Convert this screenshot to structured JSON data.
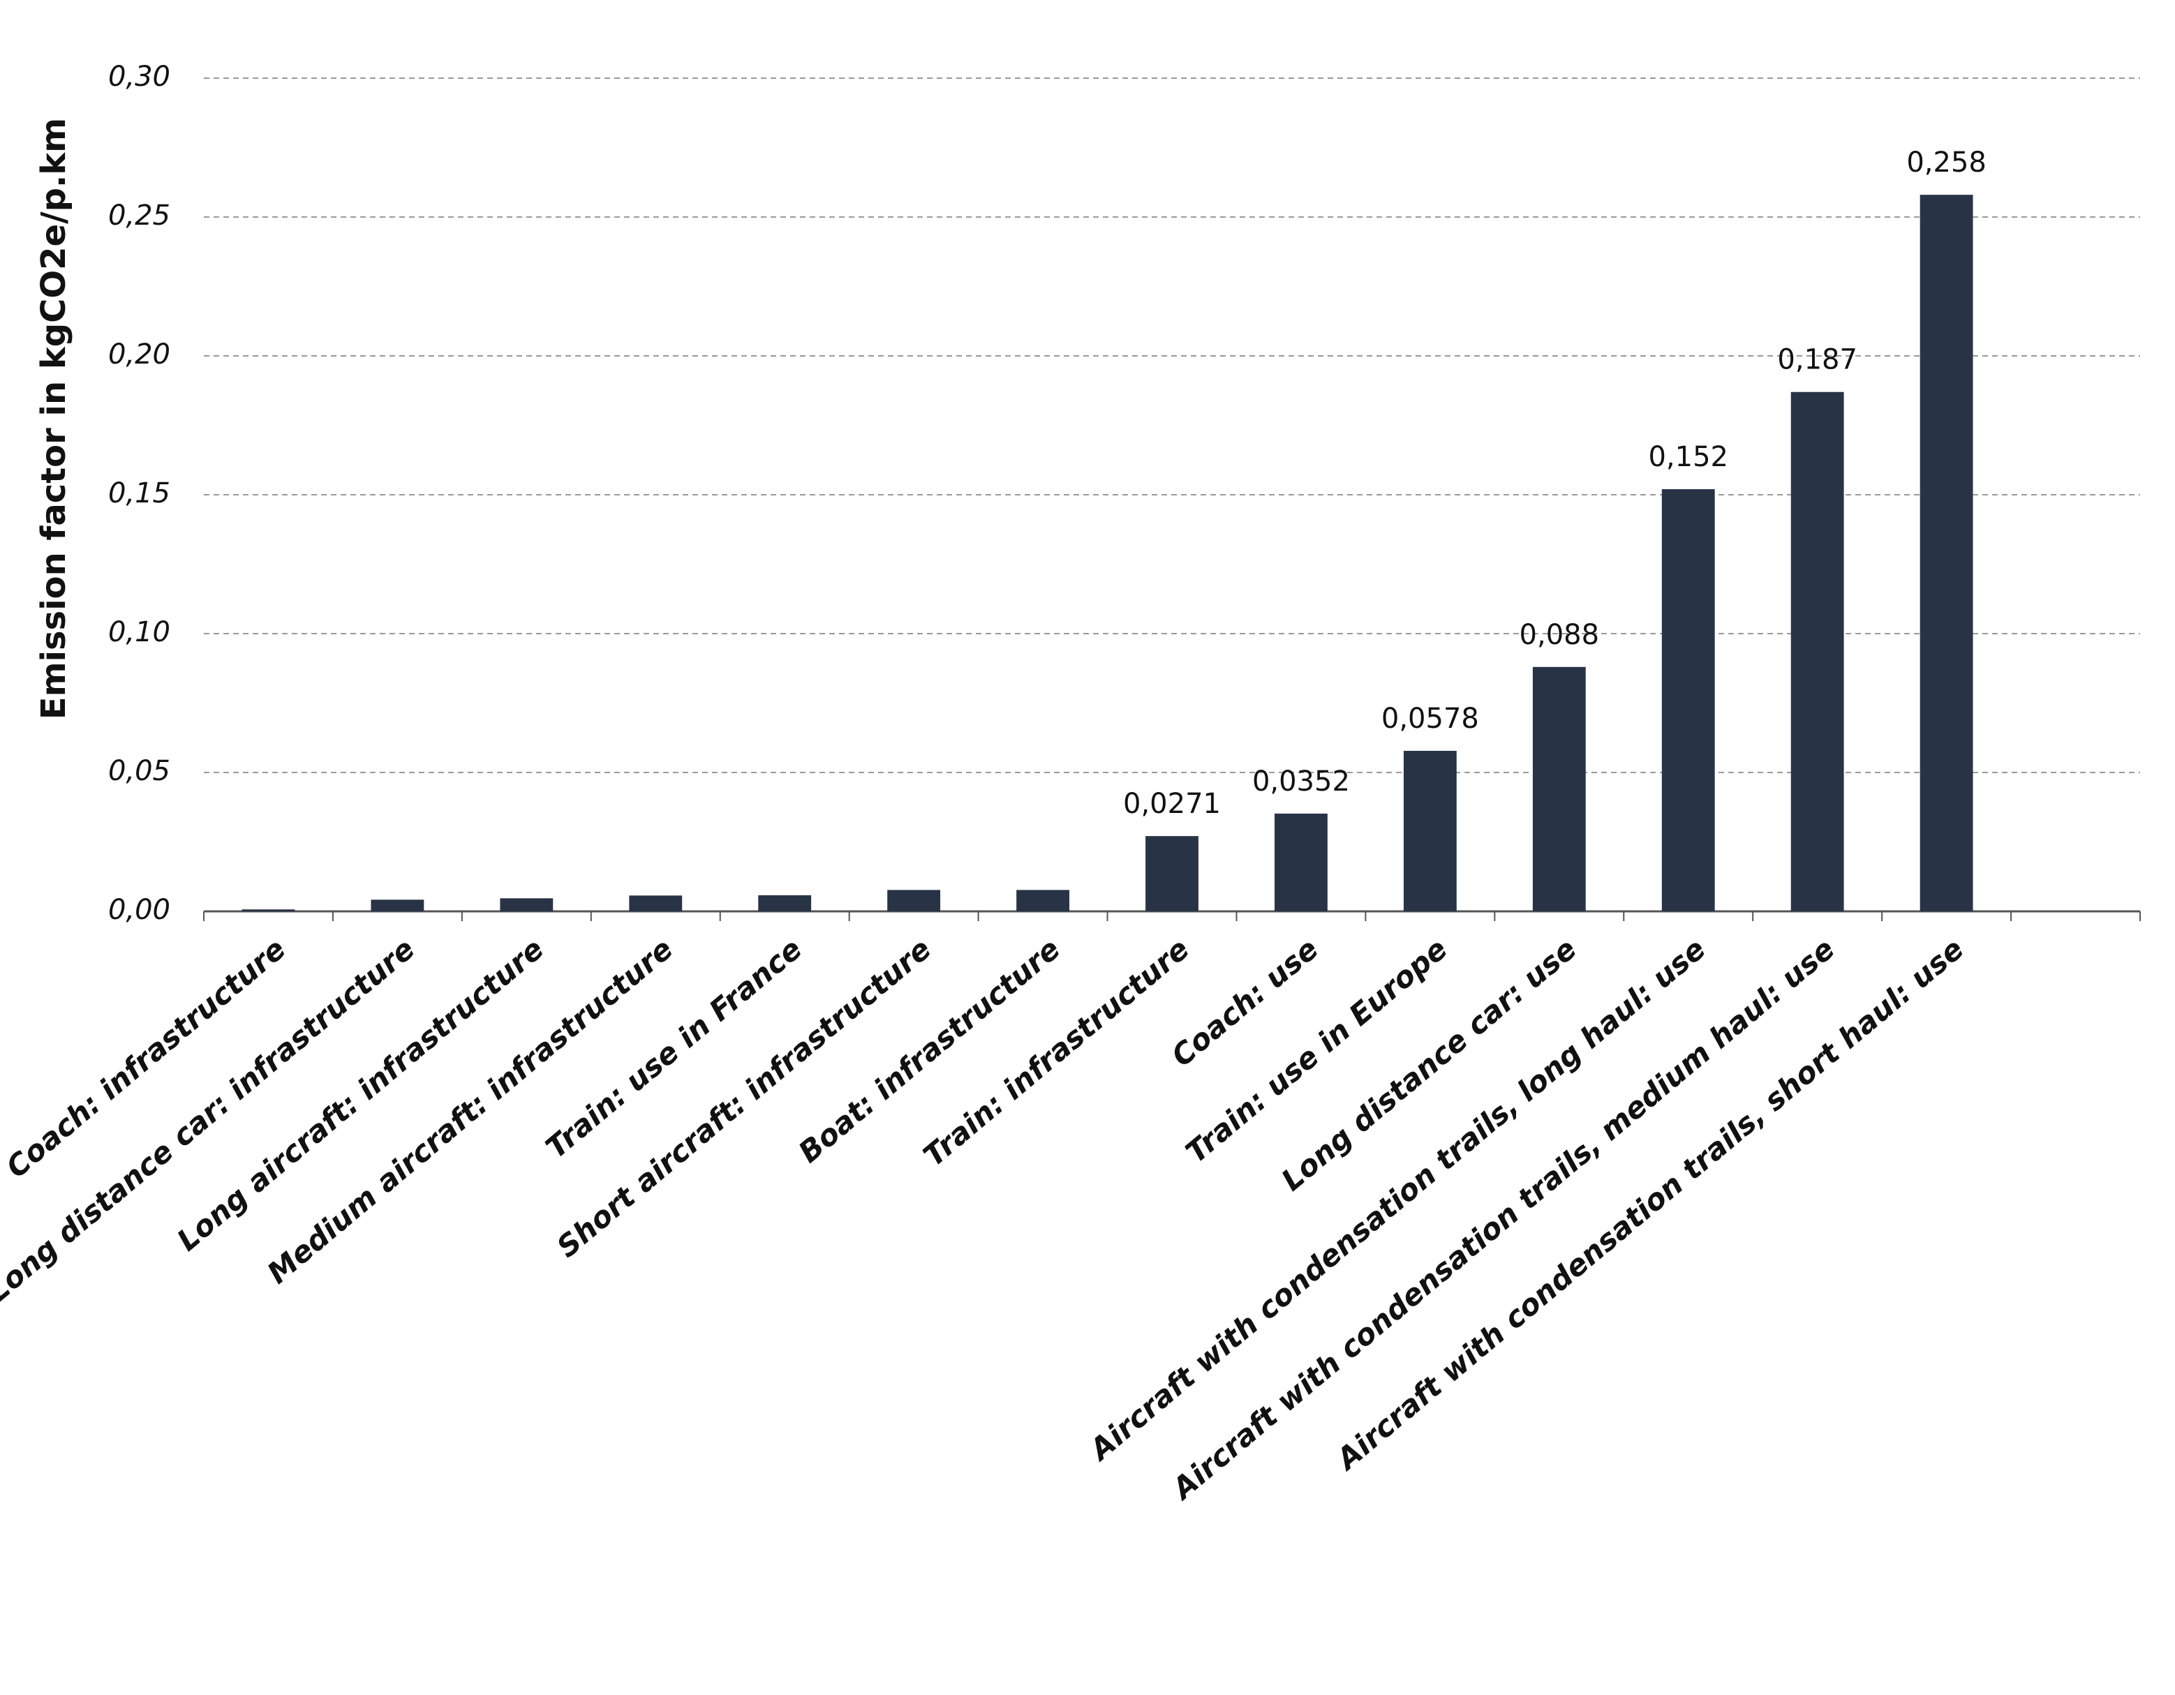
{
  "chart_data": {
    "type": "bar",
    "y_label": "Emission factor in kgCO2e/p.km",
    "categories": [
      "Coach: infrastructure",
      "Long distance car: infrastructure",
      "Long aircraft: infrastructure",
      "Medium aircraft: infrastructure",
      "Train: use in France",
      "Short aircraft: infrastructure",
      "Boat: infrastructure",
      "Train: infrastructure",
      "Coach: use",
      "Train: use in Europe",
      "Long distance car: use",
      "Aircraft with condensation trails, long haul: use",
      "Aircraft with condensation trails, medium haul: use",
      "Aircraft with condensation trails, short haul: use",
      null
    ],
    "values": [
      0.0007,
      0.0042,
      0.0047,
      0.0057,
      0.0058,
      0.0077,
      0.0077,
      0.0271,
      0.0352,
      0.0578,
      0.088,
      0.152,
      0.187,
      0.258,
      null
    ],
    "value_labels": [
      null,
      null,
      null,
      null,
      null,
      null,
      null,
      "0,0271",
      "0,0352",
      "0,0578",
      "0,088",
      "0,152",
      "0,187",
      "0,258",
      null
    ],
    "color": "#283346",
    "ylim": [
      0,
      0.3
    ],
    "yticks": [
      {
        "value": 0,
        "label": "0,00"
      },
      {
        "value": 0.05,
        "label": "0,05"
      },
      {
        "value": 0.1,
        "label": "0,10"
      },
      {
        "value": 0.15,
        "label": "0,15"
      },
      {
        "value": 0.2,
        "label": "0,20"
      },
      {
        "value": 0.25,
        "label": "0,25"
      },
      {
        "value": 0.3,
        "label": "0,30"
      }
    ],
    "grid": true
  }
}
